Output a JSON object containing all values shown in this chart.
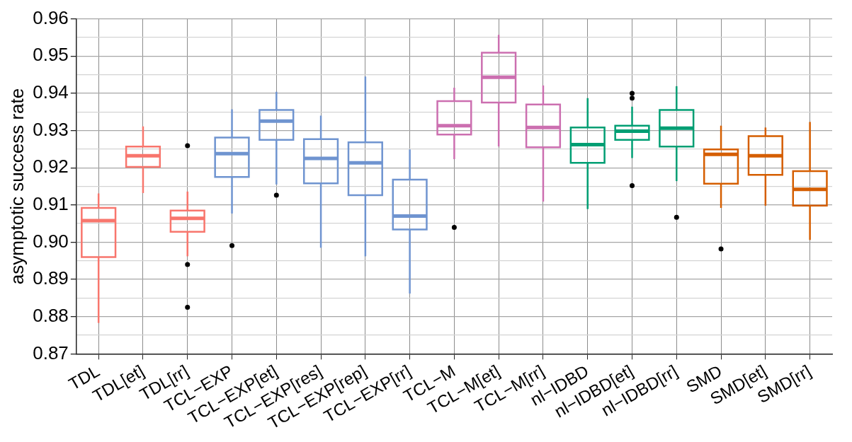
{
  "chart_data": {
    "type": "box",
    "ylabel": "asymptotic success rate",
    "categories": [
      "TDL",
      "TDL[et]",
      "TDL[rr]",
      "TCL−EXP",
      "TCL−EXP[et]",
      "TCL−EXP[res]",
      "TCL−EXP[rep]",
      "TCL−EXP[rr]",
      "TCL−M",
      "TCL−M[et]",
      "TCL−M[rr]",
      "nl−IDBD",
      "nl−IDBD[et]",
      "nl−IDBD[rr]",
      "SMD",
      "SMD[et]",
      "SMD[rr]"
    ],
    "colors": [
      "#f8766d",
      "#f8766d",
      "#f8766d",
      "#6f94d0",
      "#6f94d0",
      "#6f94d0",
      "#6f94d0",
      "#6f94d0",
      "#cc6fb0",
      "#cc6fb0",
      "#cc6fb0",
      "#009e73",
      "#009e73",
      "#009e73",
      "#d55e00",
      "#d55e00",
      "#d55e00"
    ],
    "boxes": [
      {
        "low": 0.8783,
        "q1": 0.896,
        "median": 0.9058,
        "q3": 0.9092,
        "high": 0.9131
      },
      {
        "low": 0.9132,
        "q1": 0.9202,
        "median": 0.9232,
        "q3": 0.9257,
        "high": 0.9311
      },
      {
        "low": 0.8962,
        "q1": 0.9028,
        "median": 0.9064,
        "q3": 0.9085,
        "high": 0.9136,
        "outliers": [
          0.9259,
          0.894,
          0.8825
        ]
      },
      {
        "low": 0.9077,
        "q1": 0.9175,
        "median": 0.9238,
        "q3": 0.9281,
        "high": 0.9357,
        "outliers": [
          0.8991
        ]
      },
      {
        "low": 0.9155,
        "q1": 0.9275,
        "median": 0.9325,
        "q3": 0.9355,
        "high": 0.9404,
        "outliers": [
          0.9126
        ]
      },
      {
        "low": 0.8985,
        "q1": 0.9158,
        "median": 0.9225,
        "q3": 0.9277,
        "high": 0.934
      },
      {
        "low": 0.8962,
        "q1": 0.9126,
        "median": 0.9213,
        "q3": 0.9268,
        "high": 0.9445
      },
      {
        "low": 0.8862,
        "q1": 0.9034,
        "median": 0.907,
        "q3": 0.9168,
        "high": 0.9249
      },
      {
        "low": 0.9223,
        "q1": 0.9289,
        "median": 0.9313,
        "q3": 0.9379,
        "high": 0.9415,
        "outliers": [
          0.904
        ]
      },
      {
        "low": 0.9257,
        "q1": 0.9375,
        "median": 0.9443,
        "q3": 0.9509,
        "high": 0.9557
      },
      {
        "low": 0.9109,
        "q1": 0.9255,
        "median": 0.9308,
        "q3": 0.937,
        "high": 0.9421
      },
      {
        "low": 0.9089,
        "q1": 0.9213,
        "median": 0.9262,
        "q3": 0.9308,
        "high": 0.9387
      },
      {
        "low": 0.9226,
        "q1": 0.9275,
        "median": 0.9298,
        "q3": 0.9313,
        "high": 0.9364,
        "outliers": [
          0.94,
          0.9387,
          0.9152
        ]
      },
      {
        "low": 0.9164,
        "q1": 0.9257,
        "median": 0.9306,
        "q3": 0.9355,
        "high": 0.9419,
        "outliers": [
          0.9067
        ]
      },
      {
        "low": 0.9092,
        "q1": 0.9157,
        "median": 0.9236,
        "q3": 0.9249,
        "high": 0.9313,
        "outliers": [
          0.8982
        ]
      },
      {
        "low": 0.9098,
        "q1": 0.9181,
        "median": 0.9232,
        "q3": 0.9285,
        "high": 0.9308
      },
      {
        "low": 0.9006,
        "q1": 0.9098,
        "median": 0.9142,
        "q3": 0.9191,
        "high": 0.9323
      }
    ],
    "ylim": [
      0.87,
      0.96
    ],
    "yticks": [
      0.87,
      {
        "value": 0.875,
        "label": null
      },
      0.88,
      {
        "value": 0.885,
        "label": null
      },
      0.89,
      {
        "value": 0.895,
        "label": null
      },
      {
        "value": 0.9,
        "label": "0.90"
      },
      {
        "value": 0.905,
        "label": null
      },
      0.91,
      {
        "value": 0.915,
        "label": null
      },
      0.92,
      {
        "value": 0.925,
        "label": null
      },
      0.93,
      {
        "value": 0.935,
        "label": null
      },
      0.94,
      {
        "value": 0.945,
        "label": null
      },
      0.95,
      {
        "value": 0.955,
        "label": null
      },
      0.96
    ],
    "grid": true,
    "legend": false
  }
}
